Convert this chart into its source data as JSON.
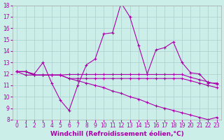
{
  "xlabel": "Windchill (Refroidissement éolien,°C)",
  "bg_color": "#cceee8",
  "line_color": "#aa00aa",
  "grid_color": "#aacccc",
  "x_values": [
    0,
    1,
    2,
    3,
    4,
    5,
    6,
    7,
    8,
    9,
    10,
    11,
    12,
    13,
    14,
    15,
    16,
    17,
    18,
    19,
    20,
    21,
    22,
    23
  ],
  "line1": [
    12.2,
    12.2,
    12.0,
    13.0,
    11.2,
    9.7,
    8.8,
    11.0,
    12.8,
    13.3,
    15.5,
    15.6,
    18.2,
    17.0,
    14.5,
    12.0,
    14.1,
    14.3,
    14.8,
    13.0,
    12.1,
    12.0,
    11.2,
    11.2
  ],
  "line2": [
    12.2,
    12.2,
    11.9,
    11.9,
    11.9,
    11.9,
    11.95,
    11.95,
    11.95,
    11.95,
    11.95,
    11.95,
    11.95,
    11.95,
    11.95,
    11.95,
    11.95,
    11.95,
    11.95,
    11.95,
    11.7,
    11.5,
    11.3,
    11.1
  ],
  "line3": [
    12.2,
    11.9,
    11.9,
    11.9,
    11.9,
    11.9,
    11.6,
    11.6,
    11.6,
    11.6,
    11.6,
    11.6,
    11.6,
    11.6,
    11.6,
    11.6,
    11.6,
    11.6,
    11.6,
    11.6,
    11.4,
    11.2,
    11.0,
    10.8
  ],
  "line4": [
    12.2,
    12.2,
    11.9,
    11.9,
    11.9,
    11.9,
    11.6,
    11.4,
    11.2,
    11.0,
    10.8,
    10.5,
    10.3,
    10.0,
    9.8,
    9.5,
    9.2,
    9.0,
    8.8,
    8.6,
    8.4,
    8.2,
    8.0,
    8.2
  ],
  "ylim": [
    8,
    18
  ],
  "xlim": [
    -0.5,
    23.5
  ],
  "yticks": [
    8,
    9,
    10,
    11,
    12,
    13,
    14,
    15,
    16,
    17,
    18
  ],
  "xticks": [
    0,
    1,
    2,
    3,
    4,
    5,
    6,
    7,
    8,
    9,
    10,
    11,
    12,
    13,
    14,
    15,
    16,
    17,
    18,
    19,
    20,
    21,
    22,
    23
  ],
  "xlabel_fontsize": 6.5,
  "tick_fontsize": 5.5,
  "figsize": [
    3.2,
    2.0
  ],
  "dpi": 100
}
